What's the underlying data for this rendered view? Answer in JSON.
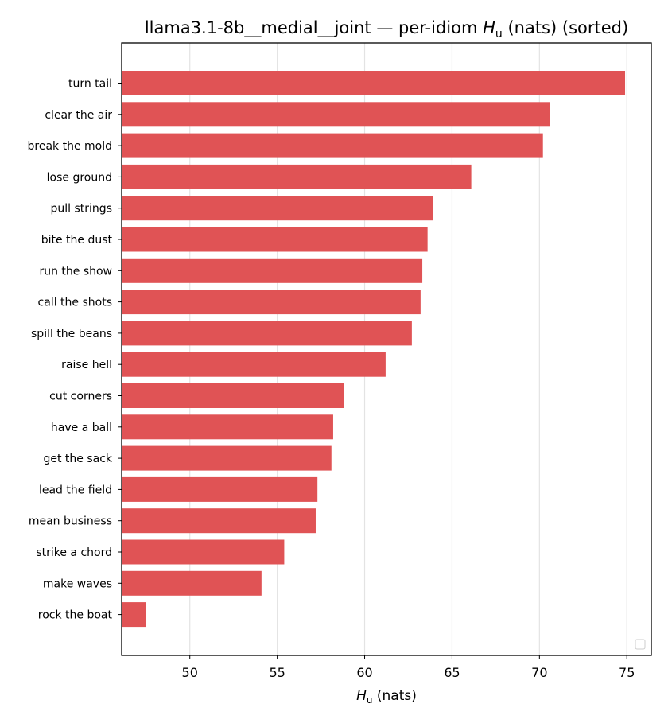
{
  "chart_data": {
    "type": "bar",
    "orientation": "horizontal",
    "title": {
      "prefix": "llama3.1-8b__medial__joint — per-idiom ",
      "symbol": "H",
      "subscript": "u",
      "suffix": " (nats) (sorted)"
    },
    "xlabel": {
      "symbol": "H",
      "subscript": "u",
      "suffix": " (nats)"
    },
    "categories": [
      "turn tail",
      "clear the air",
      "break the mold",
      "lose ground",
      "pull strings",
      "bite the dust",
      "run the show",
      "call the shots",
      "spill the beans",
      "raise hell",
      "cut corners",
      "have a ball",
      "get the sack",
      "lead the field",
      "mean business",
      "strike a chord",
      "make waves",
      "rock the boat"
    ],
    "values": [
      74.9,
      70.6,
      70.2,
      66.1,
      63.9,
      63.6,
      63.3,
      63.2,
      62.7,
      61.2,
      58.8,
      58.2,
      58.1,
      57.3,
      57.2,
      55.4,
      54.1,
      47.5
    ],
    "xlim": [
      46.1,
      76.4
    ],
    "xticks": [
      "50",
      "55",
      "60",
      "65",
      "70",
      "75"
    ],
    "grid": true,
    "grid_axis": "x",
    "legend": "bottom-right (empty)",
    "bar_color": "#e05355"
  }
}
